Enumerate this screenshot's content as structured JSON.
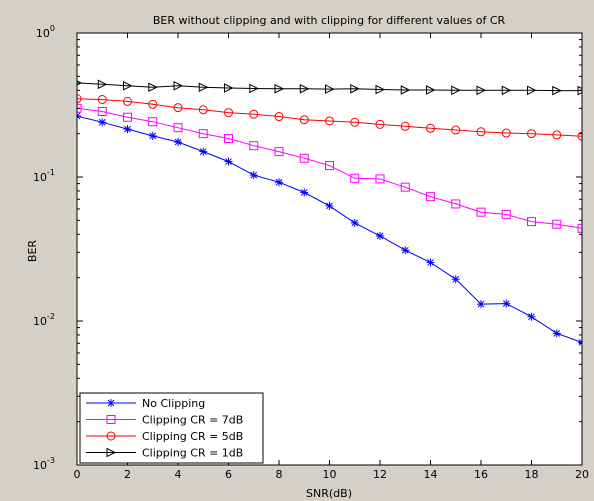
{
  "chart_data": {
    "type": "line",
    "title": "BER without clipping and with clipping for different values of CR",
    "xlabel": "SNR(dB)",
    "ylabel": "BER",
    "xlim": [
      0,
      20
    ],
    "ylim": [
      0.001,
      1
    ],
    "yscale": "log",
    "x_ticks": [
      "0",
      "2",
      "4",
      "6",
      "8",
      "10",
      "12",
      "14",
      "16",
      "18",
      "20"
    ],
    "y_ticks": [
      {
        "value": 1,
        "base": "10",
        "exp": "0"
      },
      {
        "value": 0.1,
        "base": "10",
        "exp": "-1"
      },
      {
        "value": 0.01,
        "base": "10",
        "exp": "-2"
      },
      {
        "value": 0.001,
        "base": "10",
        "exp": "-3"
      }
    ],
    "grid": false,
    "legend_position": "bottom-left",
    "x": [
      0,
      1,
      2,
      3,
      4,
      5,
      6,
      7,
      8,
      9,
      10,
      11,
      12,
      13,
      14,
      15,
      16,
      17,
      18,
      19,
      20
    ],
    "series": [
      {
        "name": "No Clipping",
        "color": "#0000ff",
        "marker": "asterisk",
        "values": [
          0.265,
          0.24,
          0.215,
          0.193,
          0.175,
          0.15,
          0.128,
          0.103,
          0.092,
          0.078,
          0.063,
          0.048,
          0.039,
          0.031,
          0.0255,
          0.0195,
          0.0131,
          0.0132,
          0.0107,
          0.0082,
          0.0071
        ]
      },
      {
        "name": "Clipping CR = 7dB",
        "color": "#ff00ff",
        "marker": "square",
        "values": [
          0.3,
          0.285,
          0.26,
          0.242,
          0.22,
          0.2,
          0.185,
          0.165,
          0.15,
          0.135,
          0.12,
          0.098,
          0.097,
          0.085,
          0.073,
          0.065,
          0.057,
          0.055,
          0.049,
          0.047,
          0.044
        ]
      },
      {
        "name": "Clipping CR = 5dB",
        "color": "#ff0000",
        "marker": "circle",
        "values": [
          0.35,
          0.345,
          0.335,
          0.32,
          0.303,
          0.293,
          0.28,
          0.273,
          0.263,
          0.25,
          0.245,
          0.24,
          0.232,
          0.225,
          0.218,
          0.212,
          0.206,
          0.202,
          0.2,
          0.196,
          0.192
        ]
      },
      {
        "name": "Clipping CR = 1dB",
        "color": "#000000",
        "marker": "triangle-right",
        "values": [
          0.45,
          0.44,
          0.43,
          0.42,
          0.43,
          0.42,
          0.415,
          0.412,
          0.41,
          0.41,
          0.408,
          0.41,
          0.405,
          0.402,
          0.402,
          0.4,
          0.4,
          0.4,
          0.4,
          0.398,
          0.398
        ]
      }
    ]
  }
}
